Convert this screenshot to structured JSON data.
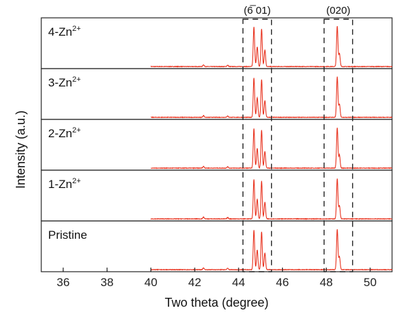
{
  "chart_data": {
    "type": "line",
    "xlabel": "Two theta (degree)",
    "ylabel": "Intensity (a.u.)",
    "xlim": [
      35,
      51
    ],
    "xticks": [
      36,
      38,
      40,
      42,
      44,
      46,
      48,
      50
    ],
    "xtick_labels": [
      "36",
      "38",
      "40",
      "42",
      "44",
      "46",
      "48",
      "50"
    ],
    "data_range": [
      40,
      51
    ],
    "color": "#e8321e",
    "panels": [
      {
        "label": "4-Zn",
        "label_sup": "2+"
      },
      {
        "label": "3-Zn",
        "label_sup": "2+"
      },
      {
        "label": "2-Zn",
        "label_sup": "2+"
      },
      {
        "label": "1-Zn",
        "label_sup": "2+"
      },
      {
        "label": "Pristine",
        "label_sup": ""
      }
    ],
    "peaks": [
      {
        "x": 44.7,
        "height": 0.9
      },
      {
        "x": 44.85,
        "height": 0.45
      },
      {
        "x": 45.05,
        "height": 0.86
      },
      {
        "x": 45.2,
        "height": 0.38
      },
      {
        "x": 48.5,
        "height": 0.92
      },
      {
        "x": 48.6,
        "height": 0.3
      },
      {
        "x": 42.4,
        "height": 0.04
      },
      {
        "x": 43.5,
        "height": 0.03
      }
    ],
    "annotations": [
      {
        "text": "(6̅ 01)",
        "x_range": [
          44.2,
          45.5
        ]
      },
      {
        "text": "(020)",
        "x_range": [
          47.9,
          49.2
        ]
      }
    ]
  }
}
